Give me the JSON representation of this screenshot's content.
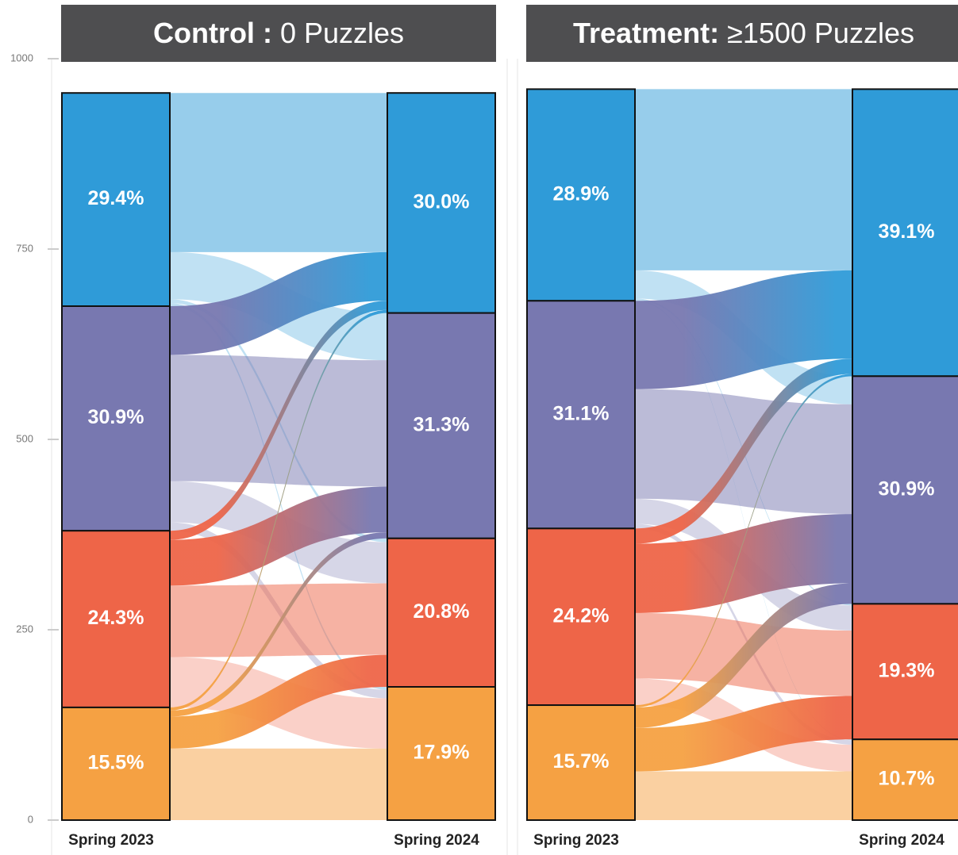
{
  "chart_data": [
    {
      "type": "sankey",
      "title": [
        "Control :",
        "0 Puzzles"
      ],
      "categories": [
        "Spring 2023",
        "Spring 2024"
      ],
      "colors": [
        "#2f9bd8",
        "#7878b0",
        "#ee6548",
        "#f5a143"
      ],
      "ylim": [
        0,
        1000
      ],
      "yticks": [
        0,
        250,
        500,
        750,
        1000
      ],
      "nodes": [
        {
          "values": [
            29.4,
            30.9,
            24.3,
            15.5
          ],
          "value_labels": [
            "29.4%",
            "30.9%",
            "24.3%",
            "15.5%"
          ]
        },
        {
          "values": [
            30.0,
            31.3,
            20.8,
            17.9
          ],
          "value_labels": [
            "30.0%",
            "31.3%",
            "20.8%",
            "17.9%"
          ]
        }
      ],
      "flows": [
        [
          209,
          62,
          5,
          4
        ],
        [
          64,
          166,
          54,
          11
        ],
        [
          12,
          60,
          94,
          66
        ],
        [
          4,
          8,
          42,
          94
        ]
      ]
    },
    {
      "type": "sankey",
      "title": [
        "Treatment:",
        "≥1500 Puzzles"
      ],
      "categories": [
        "Spring 2023",
        "Spring 2024"
      ],
      "colors": [
        "#2f9bd8",
        "#7878b0",
        "#ee6548",
        "#f5a143"
      ],
      "ylim": [
        0,
        1000
      ],
      "nodes": [
        {
          "values": [
            28.9,
            31.1,
            24.2,
            15.7
          ],
          "value_labels": [
            "28.9%",
            "31.1%",
            "24.2%",
            "15.7%"
          ]
        },
        {
          "values": [
            39.1,
            30.9,
            19.3,
            10.7
          ],
          "value_labels": [
            "39.1%",
            "30.9%",
            "19.3%",
            "10.7%"
          ]
        }
      ],
      "flows": [
        [
          238,
          37,
          2,
          1
        ],
        [
          116,
          144,
          33,
          6
        ],
        [
          20,
          91,
          86,
          35
        ],
        [
          3,
          27,
          57,
          64
        ]
      ]
    }
  ]
}
